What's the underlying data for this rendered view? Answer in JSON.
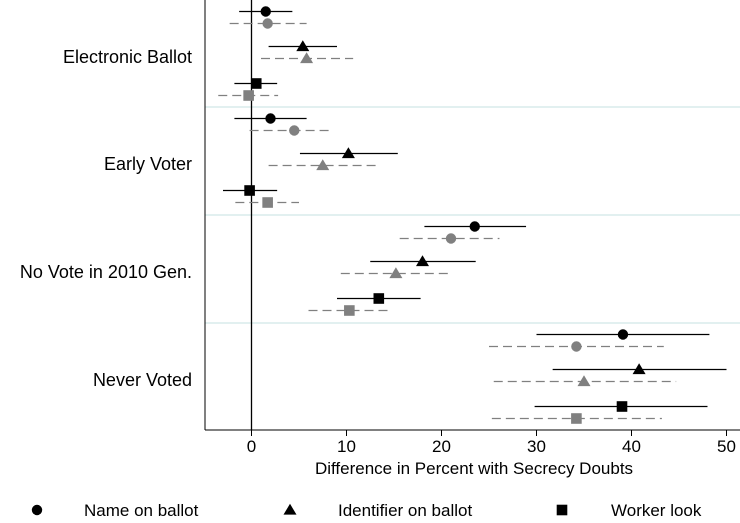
{
  "chart_data": {
    "type": "scatter",
    "title": "",
    "xlabel": "Difference in Percent with Secrecy Doubts",
    "ylabel": "",
    "xlim": [
      -5,
      51.5
    ],
    "xticks": [
      0,
      10,
      20,
      30,
      40,
      50
    ],
    "x_tick_labels": [
      "0",
      "10",
      "20",
      "30",
      "40",
      "50"
    ],
    "reference_line": 0,
    "grid": false,
    "legend_position": "bottom",
    "categories": [
      "Electronic Ballot",
      "Early Voter",
      "No Vote in 2010 Gen.",
      "Never Voted"
    ],
    "series": [
      {
        "name": "Name on ballot",
        "marker": "circle",
        "points": [
          {
            "category": "Electronic Ballot",
            "group": "black",
            "estimate": 1.5,
            "lo": -1.3,
            "hi": 4.3
          },
          {
            "category": "Electronic Ballot",
            "group": "gray",
            "estimate": 1.7,
            "lo": -2.3,
            "hi": 5.8
          },
          {
            "category": "Early Voter",
            "group": "black",
            "estimate": 2.0,
            "lo": -1.8,
            "hi": 5.8
          },
          {
            "category": "Early Voter",
            "group": "gray",
            "estimate": 4.5,
            "lo": -0.2,
            "hi": 8.6
          },
          {
            "category": "No Vote in 2010 Gen.",
            "group": "black",
            "estimate": 23.5,
            "lo": 18.2,
            "hi": 28.9
          },
          {
            "category": "No Vote in 2010 Gen.",
            "group": "gray",
            "estimate": 21.0,
            "lo": 15.6,
            "hi": 26.1
          },
          {
            "category": "Never Voted",
            "group": "black",
            "estimate": 39.1,
            "lo": 30.0,
            "hi": 48.2
          },
          {
            "category": "Never Voted",
            "group": "gray",
            "estimate": 34.2,
            "lo": 25.0,
            "hi": 43.4
          }
        ]
      },
      {
        "name": "Identifier on ballot",
        "marker": "triangle",
        "points": [
          {
            "category": "Electronic Ballot",
            "group": "black",
            "estimate": 5.4,
            "lo": 1.8,
            "hi": 9.0
          },
          {
            "category": "Electronic Ballot",
            "group": "gray",
            "estimate": 5.8,
            "lo": 1.0,
            "hi": 10.7
          },
          {
            "category": "Early Voter",
            "group": "black",
            "estimate": 10.2,
            "lo": 5.1,
            "hi": 15.4
          },
          {
            "category": "Early Voter",
            "group": "gray",
            "estimate": 7.5,
            "lo": 1.8,
            "hi": 13.3
          },
          {
            "category": "No Vote in 2010 Gen.",
            "group": "black",
            "estimate": 18.0,
            "lo": 12.5,
            "hi": 23.6
          },
          {
            "category": "No Vote in 2010 Gen.",
            "group": "gray",
            "estimate": 15.2,
            "lo": 9.4,
            "hi": 20.9
          },
          {
            "category": "Never Voted",
            "group": "black",
            "estimate": 40.8,
            "lo": 31.7,
            "hi": 50.0
          },
          {
            "category": "Never Voted",
            "group": "gray",
            "estimate": 35.0,
            "lo": 25.5,
            "hi": 44.7
          }
        ]
      },
      {
        "name": "Worker look",
        "marker": "square",
        "points": [
          {
            "category": "Electronic Ballot",
            "group": "black",
            "estimate": 0.5,
            "lo": -1.8,
            "hi": 2.7
          },
          {
            "category": "Electronic Ballot",
            "group": "gray",
            "estimate": -0.3,
            "lo": -3.5,
            "hi": 2.8
          },
          {
            "category": "Early Voter",
            "group": "black",
            "estimate": -0.2,
            "lo": -3.0,
            "hi": 2.7
          },
          {
            "category": "Early Voter",
            "group": "gray",
            "estimate": 1.7,
            "lo": -1.7,
            "hi": 5.0
          },
          {
            "category": "No Vote in 2010 Gen.",
            "group": "black",
            "estimate": 13.4,
            "lo": 9.0,
            "hi": 17.8
          },
          {
            "category": "No Vote in 2010 Gen.",
            "group": "gray",
            "estimate": 10.3,
            "lo": 6.0,
            "hi": 14.6
          },
          {
            "category": "Never Voted",
            "group": "black",
            "estimate": 39.0,
            "lo": 29.8,
            "hi": 48.0
          },
          {
            "category": "Never Voted",
            "group": "gray",
            "estimate": 34.2,
            "lo": 25.3,
            "hi": 43.2
          }
        ]
      }
    ]
  },
  "colors": {
    "black": "#000000",
    "gray": "#808080",
    "separator": "#d9ecec"
  }
}
